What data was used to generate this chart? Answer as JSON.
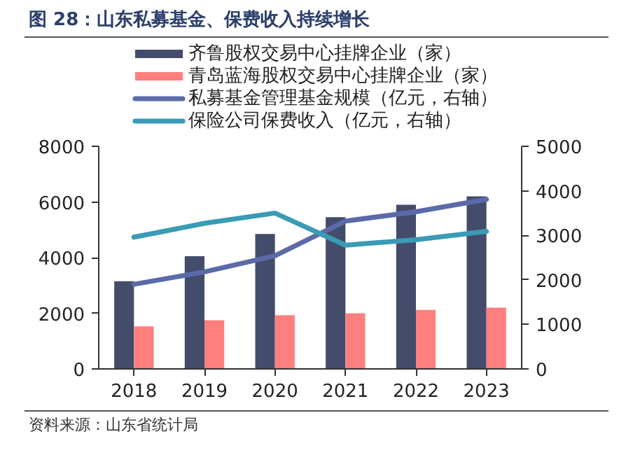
{
  "chart_data": {
    "type": "bar",
    "title": "图 28：山东私募基金、保费收入持续增长",
    "categories": [
      "2018",
      "2019",
      "2020",
      "2021",
      "2022",
      "2023"
    ],
    "series": [
      {
        "name": "齐鲁股权交易中心挂牌企业（家）",
        "color": "#444c6c",
        "values": [
          3150,
          4050,
          4850,
          5450,
          5900,
          6200
        ]
      },
      {
        "name": "青岛蓝海股权交易中心挂牌企业（家）",
        "color": "#ff7f7f",
        "values": [
          1530,
          1750,
          1930,
          2000,
          2120,
          2200
        ]
      },
      {
        "name": "私募基金管理基金规模（亿元，右轴）",
        "type": "line",
        "axis": "y2",
        "color": "#5b6aa8",
        "values": [
          1900,
          2180,
          2540,
          3320,
          3530,
          3810
        ]
      },
      {
        "name": "保险公司保费收入（亿元，右轴）",
        "type": "line",
        "axis": "y2",
        "color": "#3a9bb5",
        "values": [
          2960,
          3270,
          3500,
          2780,
          2900,
          3090
        ]
      }
    ],
    "ylim": [
      0,
      8000
    ],
    "yticks": [
      0,
      2000,
      4000,
      6000,
      8000
    ],
    "y2lim": [
      0,
      5000
    ],
    "y2ticks": [
      0,
      1000,
      2000,
      3000,
      4000,
      5000
    ],
    "grid": false,
    "legend": "top",
    "line_style": "solid",
    "marker": "none",
    "annotations": [
      "资料来源：山东省统计局"
    ]
  }
}
